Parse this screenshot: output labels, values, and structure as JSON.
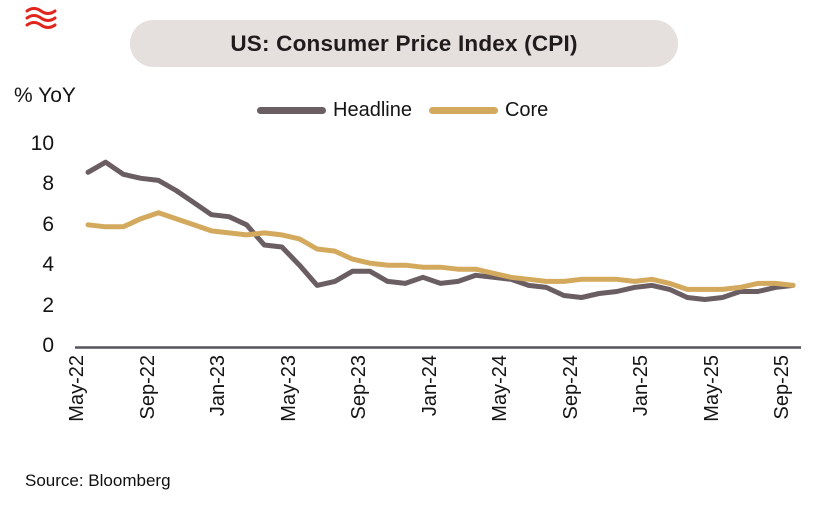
{
  "brand": {
    "icon": "triple-wave-icon",
    "color": "#e2251c"
  },
  "header": {
    "title": "US: Consumer Price Index (CPI)"
  },
  "chart_data": {
    "type": "line",
    "title": "US: Consumer Price Index (CPI)",
    "ylabel": "% YoY",
    "ylim": [
      0,
      10
    ],
    "y_ticks": [
      10,
      8,
      6,
      4,
      2,
      0
    ],
    "grid": false,
    "legend_position": "top-center",
    "x": [
      "May-22",
      "Jun-22",
      "Jul-22",
      "Aug-22",
      "Sep-22",
      "Oct-22",
      "Nov-22",
      "Dec-22",
      "Jan-23",
      "Feb-23",
      "Mar-23",
      "Apr-23",
      "May-23",
      "Jun-23",
      "Jul-23",
      "Aug-23",
      "Sep-23",
      "Oct-23",
      "Nov-23",
      "Dec-23",
      "Jan-24",
      "Feb-24",
      "Mar-24",
      "Apr-24",
      "May-24",
      "Jun-24",
      "Jul-24",
      "Aug-24",
      "Sep-24",
      "Oct-24",
      "Nov-24",
      "Dec-24",
      "Jan-25",
      "Feb-25",
      "Mar-25",
      "Apr-25",
      "May-25",
      "Jun-25",
      "Jul-25",
      "Aug-25",
      "Sep-25"
    ],
    "x_tick_labels": [
      "May-22",
      "Sep-22",
      "Jan-23",
      "May-23",
      "Sep-23",
      "Jan-24",
      "May-24",
      "Sep-24",
      "Jan-25",
      "May-25",
      "Sep-25"
    ],
    "x_tick_every": 4,
    "series": [
      {
        "name": "Headline",
        "color": "#6a5e63",
        "values": [
          8.6,
          9.1,
          8.5,
          8.3,
          8.2,
          7.7,
          7.1,
          6.5,
          6.4,
          6.0,
          5.0,
          4.9,
          4.0,
          3.0,
          3.2,
          3.7,
          3.7,
          3.2,
          3.1,
          3.4,
          3.1,
          3.2,
          3.5,
          3.4,
          3.3,
          3.0,
          2.9,
          2.5,
          2.4,
          2.6,
          2.7,
          2.9,
          3.0,
          2.8,
          2.4,
          2.3,
          2.4,
          2.7,
          2.7,
          2.9,
          3.0
        ]
      },
      {
        "name": "Core",
        "color": "#d3a95d",
        "values": [
          6.0,
          5.9,
          5.9,
          6.3,
          6.6,
          6.3,
          6.0,
          5.7,
          5.6,
          5.5,
          5.6,
          5.5,
          5.3,
          4.8,
          4.7,
          4.3,
          4.1,
          4.0,
          4.0,
          3.9,
          3.9,
          3.8,
          3.8,
          3.6,
          3.4,
          3.3,
          3.2,
          3.2,
          3.3,
          3.3,
          3.3,
          3.2,
          3.3,
          3.1,
          2.8,
          2.8,
          2.8,
          2.9,
          3.1,
          3.1,
          3.0
        ]
      }
    ]
  },
  "footer": {
    "source": "Source: Bloomberg"
  }
}
